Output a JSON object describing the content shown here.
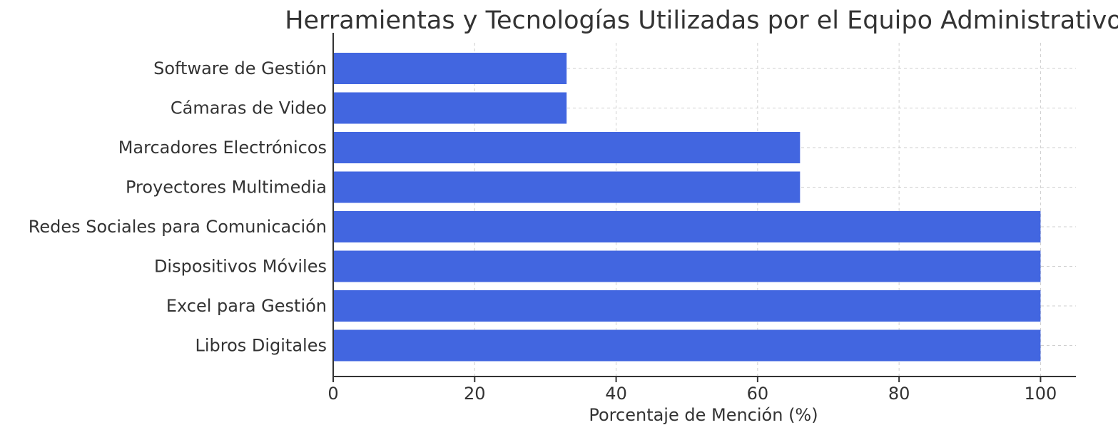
{
  "colors": {
    "bar": "#4266E0",
    "text": "#333333",
    "grid": "#cfcfcf",
    "axis": "#333333"
  },
  "chart_data": {
    "type": "bar",
    "orientation": "horizontal",
    "title": "Herramientas y Tecnologías Utilizadas por el Equipo Administrativo",
    "xlabel": "Porcentaje de Mención (%)",
    "ylabel": "",
    "categories": [
      "Software de Gestión",
      "Cámaras de Video",
      "Marcadores Electrónicos",
      "Proyectores Multimedia",
      "Redes Sociales para Comunicación",
      "Dispositivos Móviles",
      "Excel para Gestión",
      "Libros Digitales"
    ],
    "values": [
      33,
      33,
      66,
      66,
      100,
      100,
      100,
      100
    ],
    "xlim": [
      0,
      105
    ],
    "xticks": [
      0,
      20,
      40,
      60,
      80,
      100
    ],
    "xtick_labels": [
      "0",
      "20",
      "40",
      "60",
      "80",
      "100"
    ],
    "grid": true
  }
}
